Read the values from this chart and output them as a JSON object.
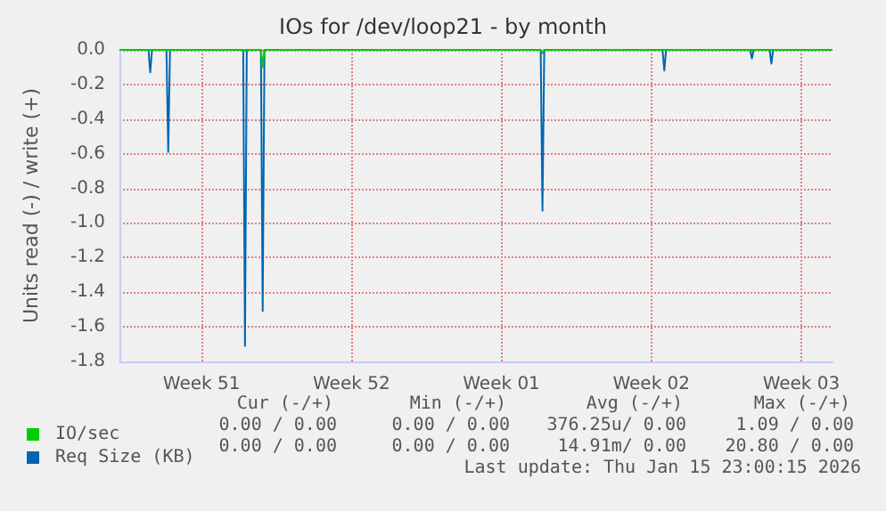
{
  "chart_data": {
    "type": "line",
    "title": "IOs for /dev/loop21 - by month",
    "ylabel": "Units read (-) / write (+)",
    "xlim": [
      "2025-12-14T16:00",
      "2026-01-16T23:00"
    ],
    "xticks": [
      {
        "value": "2025-12-18T12:00",
        "label": "Week 51"
      },
      {
        "value": "2025-12-25T12:00",
        "label": "Week 52"
      },
      {
        "value": "2026-01-01T12:00",
        "label": "Week 01"
      },
      {
        "value": "2026-01-08T12:00",
        "label": "Week 02"
      },
      {
        "value": "2026-01-15T12:00",
        "label": "Week 03"
      }
    ],
    "ylim": [
      -1.8,
      0
    ],
    "yticks": [
      {
        "value": 0,
        "label": "0.0"
      },
      -0.2,
      -0.4,
      -0.6,
      -0.8,
      {
        "value": -1,
        "label": "-1.0"
      },
      -1.2,
      -1.4,
      -1.6,
      -1.8
    ],
    "grid": true,
    "legend": "bottom left",
    "marker": "none",
    "line_style": "solid",
    "series": [
      {
        "name": "Req Size (KB)",
        "color": "#0066b3",
        "x": [
          "2025-12-14T16:00",
          "2025-12-16T00:30",
          "2025-12-16T02:30",
          "2025-12-16T04:30",
          "2025-12-16T20:40",
          "2025-12-16T22:40",
          "2025-12-17T00:40",
          "2025-12-20T10:40",
          "2025-12-20T12:40",
          "2025-12-20T14:40",
          "2025-12-21T06:30",
          "2025-12-21T08:30",
          "2025-12-21T10:30",
          "2026-01-03T08:00",
          "2026-01-03T10:00",
          "2026-01-03T12:00",
          "2026-01-09T00:30",
          "2026-01-09T02:30",
          "2026-01-09T04:30",
          "2026-01-13T02:40",
          "2026-01-13T04:40",
          "2026-01-13T06:40",
          "2026-01-14T00:30",
          "2026-01-14T02:30",
          "2026-01-14T04:30",
          "2026-01-16T23:00"
        ],
        "values": [
          0,
          0,
          -0.13,
          0,
          0,
          -0.59,
          0,
          0,
          -1.71,
          0,
          0,
          -1.51,
          0,
          0,
          -0.93,
          0,
          0,
          -0.12,
          0,
          0,
          -0.05,
          0,
          0,
          -0.08,
          0,
          0
        ]
      },
      {
        "name": "IO/sec",
        "color": "#00cc00",
        "x": [
          "2025-12-14T16:00",
          "2025-12-20T09:10",
          "2025-12-20T11:10",
          "2025-12-20T13:10",
          "2025-12-21T06:30",
          "2025-12-21T08:30",
          "2025-12-21T10:30",
          "2026-01-03T08:00",
          "2026-01-03T10:00",
          "2026-01-03T12:00",
          "2026-01-16T23:00"
        ],
        "values": [
          0,
          0,
          -0.01,
          0,
          0,
          -0.1,
          0,
          0,
          -0.02,
          0,
          0
        ]
      }
    ],
    "annotations": [
      "Cur (-/+)",
      "Min (-/+)",
      "Avg (-/+)",
      "Max (-/+)",
      "0.00 / 0.00",
      "0.00 / 0.00",
      "376.25u/ 0.00",
      "1.09 / 0.00",
      "0.00 / 0.00",
      "0.00 / 0.00",
      "14.91m/ 0.00",
      "20.80 / 0.00",
      "Last update: Thu Jan 15 23:00:15 2026"
    ]
  }
}
